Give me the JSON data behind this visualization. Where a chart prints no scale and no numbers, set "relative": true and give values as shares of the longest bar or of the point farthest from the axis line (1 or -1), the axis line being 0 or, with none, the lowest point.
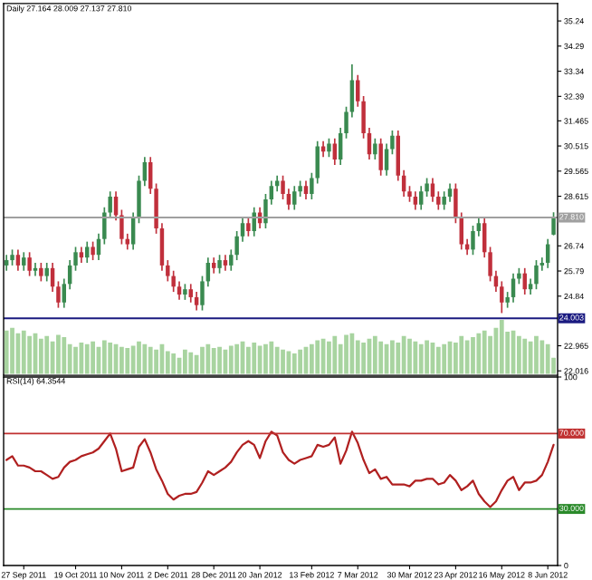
{
  "chart_data": [
    {
      "type": "candlestick",
      "title": "Daily 27.164 28.009 27.137 27.810",
      "tick_labels": "y",
      "categories": [
        null,
        null,
        null,
        null,
        null,
        null,
        null,
        null,
        null,
        null,
        null,
        null,
        null,
        null,
        null,
        null,
        null,
        null,
        null,
        null,
        null,
        null,
        null,
        null,
        null,
        null,
        null,
        null,
        null,
        null,
        null,
        null,
        null,
        null,
        null,
        null,
        null,
        null,
        null,
        null,
        null,
        null,
        null,
        null,
        null,
        null,
        null,
        null,
        null,
        null,
        null,
        null,
        null,
        null,
        null,
        null,
        null,
        null,
        null,
        null,
        null,
        null,
        null,
        null,
        null,
        null,
        null,
        null,
        null,
        null,
        null,
        null,
        null,
        null,
        null,
        null,
        null,
        null,
        null,
        null,
        null,
        null,
        null,
        null,
        null,
        null,
        null,
        null,
        null,
        null,
        null,
        null,
        null,
        null,
        null,
        null
      ],
      "ohlc": [
        [
          26.0,
          26.4,
          25.8,
          26.2
        ],
        [
          26.2,
          26.6,
          26.0,
          26.4
        ],
        [
          26.4,
          26.6,
          25.8,
          26.0
        ],
        [
          26.0,
          26.5,
          25.8,
          26.3
        ],
        [
          26.3,
          26.5,
          25.6,
          25.8
        ],
        [
          25.8,
          26.1,
          25.6,
          25.9
        ],
        [
          25.9,
          26.1,
          25.4,
          25.6
        ],
        [
          25.6,
          26.1,
          25.4,
          25.9
        ],
        [
          25.9,
          26.1,
          25.0,
          25.2
        ],
        [
          25.2,
          25.4,
          24.4,
          24.6
        ],
        [
          24.6,
          25.5,
          24.4,
          25.3
        ],
        [
          25.3,
          26.2,
          25.1,
          26.0
        ],
        [
          26.0,
          26.7,
          25.8,
          26.5
        ],
        [
          26.5,
          26.7,
          26.1,
          26.3
        ],
        [
          26.3,
          26.9,
          26.1,
          26.7
        ],
        [
          26.7,
          26.9,
          26.2,
          26.4
        ],
        [
          26.4,
          27.2,
          26.2,
          27.0
        ],
        [
          27.0,
          28.2,
          26.8,
          28.0
        ],
        [
          28.0,
          28.8,
          27.8,
          28.6
        ],
        [
          28.6,
          28.8,
          27.7,
          27.9
        ],
        [
          27.9,
          28.1,
          26.8,
          27.0
        ],
        [
          27.0,
          27.2,
          26.6,
          26.8
        ],
        [
          26.8,
          28.0,
          26.6,
          27.8
        ],
        [
          27.8,
          29.4,
          27.6,
          29.2
        ],
        [
          29.2,
          30.1,
          29.0,
          29.9
        ],
        [
          29.9,
          30.1,
          28.7,
          28.9
        ],
        [
          28.9,
          29.1,
          27.2,
          27.4
        ],
        [
          27.4,
          27.6,
          25.8,
          26.0
        ],
        [
          26.0,
          26.2,
          25.4,
          25.6
        ],
        [
          25.6,
          25.8,
          25.0,
          25.2
        ],
        [
          25.2,
          25.4,
          24.7,
          24.9
        ],
        [
          24.9,
          25.3,
          24.7,
          25.1
        ],
        [
          25.1,
          25.3,
          24.6,
          24.8
        ],
        [
          24.8,
          25.0,
          24.3,
          24.5
        ],
        [
          24.5,
          25.6,
          24.3,
          25.4
        ],
        [
          25.4,
          26.3,
          25.2,
          26.1
        ],
        [
          26.1,
          26.3,
          25.7,
          25.9
        ],
        [
          25.9,
          26.4,
          25.7,
          26.2
        ],
        [
          26.2,
          26.4,
          25.8,
          26.0
        ],
        [
          26.0,
          26.6,
          25.8,
          26.4
        ],
        [
          26.4,
          27.3,
          26.2,
          27.1
        ],
        [
          27.1,
          27.8,
          26.9,
          27.6
        ],
        [
          27.6,
          27.8,
          27.1,
          27.3
        ],
        [
          27.3,
          28.2,
          27.1,
          28.0
        ],
        [
          28.0,
          28.2,
          27.4,
          27.6
        ],
        [
          27.6,
          28.7,
          27.4,
          28.5
        ],
        [
          28.5,
          29.2,
          28.3,
          29.0
        ],
        [
          29.0,
          29.4,
          28.8,
          29.2
        ],
        [
          29.2,
          29.4,
          28.5,
          28.7
        ],
        [
          28.7,
          28.9,
          28.1,
          28.3
        ],
        [
          28.3,
          29.0,
          28.1,
          28.8
        ],
        [
          28.8,
          29.2,
          28.6,
          29.0
        ],
        [
          29.0,
          29.2,
          28.5,
          28.7
        ],
        [
          28.7,
          29.5,
          28.5,
          29.3
        ],
        [
          29.3,
          30.7,
          29.1,
          30.5
        ],
        [
          30.5,
          30.7,
          30.1,
          30.3
        ],
        [
          30.3,
          30.8,
          30.1,
          30.6
        ],
        [
          30.6,
          30.8,
          29.8,
          30.0
        ],
        [
          30.0,
          31.2,
          29.8,
          31.0
        ],
        [
          31.0,
          32.0,
          30.8,
          31.8
        ],
        [
          31.8,
          33.6,
          31.6,
          33.0
        ],
        [
          33.0,
          33.2,
          32.0,
          32.2
        ],
        [
          32.2,
          32.4,
          30.8,
          31.0
        ],
        [
          31.0,
          31.2,
          30.0,
          30.2
        ],
        [
          30.2,
          30.8,
          30.0,
          30.6
        ],
        [
          30.6,
          30.8,
          29.4,
          29.6
        ],
        [
          29.6,
          30.6,
          29.4,
          30.4
        ],
        [
          30.4,
          31.1,
          30.2,
          30.9
        ],
        [
          30.9,
          31.1,
          29.2,
          29.4
        ],
        [
          29.4,
          29.6,
          28.6,
          28.8
        ],
        [
          28.8,
          29.0,
          28.4,
          28.6
        ],
        [
          28.6,
          28.8,
          28.1,
          28.3
        ],
        [
          28.3,
          29.0,
          28.1,
          28.8
        ],
        [
          28.8,
          29.3,
          28.6,
          29.1
        ],
        [
          29.1,
          29.3,
          28.4,
          28.6
        ],
        [
          28.6,
          28.8,
          28.1,
          28.3
        ],
        [
          28.3,
          28.8,
          28.1,
          28.6
        ],
        [
          28.6,
          29.1,
          28.4,
          28.9
        ],
        [
          28.9,
          29.1,
          27.6,
          27.8
        ],
        [
          27.8,
          28.0,
          26.6,
          26.8
        ],
        [
          26.8,
          27.0,
          26.4,
          26.6
        ],
        [
          26.6,
          27.5,
          26.4,
          27.3
        ],
        [
          27.3,
          27.8,
          27.1,
          27.6
        ],
        [
          27.6,
          27.8,
          26.3,
          26.5
        ],
        [
          26.5,
          26.7,
          25.4,
          25.6
        ],
        [
          25.6,
          25.8,
          25.0,
          25.2
        ],
        [
          25.2,
          25.4,
          24.2,
          24.6
        ],
        [
          24.6,
          25.0,
          24.4,
          24.8
        ],
        [
          24.8,
          25.7,
          24.6,
          25.5
        ],
        [
          25.5,
          25.9,
          25.3,
          25.7
        ],
        [
          25.7,
          25.9,
          24.9,
          25.1
        ],
        [
          25.1,
          25.5,
          24.9,
          25.3
        ],
        [
          25.3,
          26.2,
          25.1,
          26.0
        ],
        [
          26.0,
          26.3,
          25.8,
          26.1
        ],
        [
          26.1,
          27.0,
          25.9,
          26.8
        ],
        [
          27.164,
          28.009,
          27.137,
          27.81
        ]
      ],
      "colors": [
        "#3a8a50",
        "#3a8a50",
        "#c0303c",
        "#3a8a50",
        "#c0303c",
        "#3a8a50",
        "#c0303c",
        "#3a8a50",
        "#c0303c",
        "#c0303c",
        "#3a8a50",
        "#3a8a50",
        "#3a8a50",
        "#c0303c",
        "#3a8a50",
        "#c0303c",
        "#3a8a50",
        "#3a8a50",
        "#3a8a50",
        "#c0303c",
        "#c0303c",
        "#c0303c",
        "#3a8a50",
        "#3a8a50",
        "#3a8a50",
        "#c0303c",
        "#c0303c",
        "#c0303c",
        "#c0303c",
        "#c0303c",
        "#c0303c",
        "#3a8a50",
        "#c0303c",
        "#c0303c",
        "#3a8a50",
        "#3a8a50",
        "#c0303c",
        "#3a8a50",
        "#c0303c",
        "#3a8a50",
        "#3a8a50",
        "#3a8a50",
        "#c0303c",
        "#3a8a50",
        "#c0303c",
        "#3a8a50",
        "#3a8a50",
        "#3a8a50",
        "#c0303c",
        "#c0303c",
        "#3a8a50",
        "#3a8a50",
        "#c0303c",
        "#3a8a50",
        "#3a8a50",
        "#c0303c",
        "#3a8a50",
        "#c0303c",
        "#3a8a50",
        "#3a8a50",
        "#3a8a50",
        "#c0303c",
        "#c0303c",
        "#c0303c",
        "#3a8a50",
        "#c0303c",
        "#3a8a50",
        "#3a8a50",
        "#c0303c",
        "#c0303c",
        "#c0303c",
        "#c0303c",
        "#3a8a50",
        "#3a8a50",
        "#c0303c",
        "#c0303c",
        "#3a8a50",
        "#3a8a50",
        "#c0303c",
        "#c0303c",
        "#c0303c",
        "#3a8a50",
        "#3a8a50",
        "#c0303c",
        "#c0303c",
        "#c0303c",
        "#c0303c",
        "#3a8a50",
        "#3a8a50",
        "#3a8a50",
        "#c0303c",
        "#3a8a50",
        "#3a8a50",
        "#3a8a50",
        "#3a8a50",
        "#3a8a50"
      ],
      "ylim": [
        21.85,
        35.9
      ],
      "yticks": [
        35.24,
        34.29,
        33.34,
        32.39,
        31.465,
        30.515,
        29.565,
        28.615,
        26.74,
        25.79,
        24.84,
        22.965,
        22.016
      ],
      "ref_lines": [
        {
          "axis": "y",
          "value": 27.81,
          "label": "27.810",
          "color": "#a0a0a0"
        },
        {
          "axis": "y",
          "value": 24.003,
          "label": "24.003",
          "color": "#1a1a80"
        }
      ]
    },
    {
      "type": "bar",
      "relative": true,
      "tick_labels": false,
      "color": "#a8d4a0",
      "categories": [
        null,
        null,
        null,
        null,
        null,
        null,
        null,
        null,
        null,
        null,
        null,
        null,
        null,
        null,
        null,
        null,
        null,
        null,
        null,
        null,
        null,
        null,
        null,
        null,
        null,
        null,
        null,
        null,
        null,
        null,
        null,
        null,
        null,
        null,
        null,
        null,
        null,
        null,
        null,
        null,
        null,
        null,
        null,
        null,
        null,
        null,
        null,
        null,
        null,
        null,
        null,
        null,
        null,
        null,
        null,
        null,
        null,
        null,
        null,
        null,
        null,
        null,
        null,
        null,
        null,
        null,
        null,
        null,
        null,
        null,
        null,
        null,
        null,
        null,
        null,
        null,
        null,
        null,
        null,
        null,
        null,
        null,
        null,
        null,
        null,
        null,
        null,
        null,
        null,
        null,
        null,
        null,
        null,
        null,
        null,
        null
      ],
      "values": [
        0.8,
        0.85,
        0.75,
        0.8,
        0.7,
        0.75,
        0.65,
        0.7,
        0.6,
        0.72,
        0.68,
        0.55,
        0.5,
        0.58,
        0.55,
        0.6,
        0.5,
        0.62,
        0.58,
        0.55,
        0.5,
        0.48,
        0.52,
        0.6,
        0.55,
        0.5,
        0.45,
        0.55,
        0.42,
        0.38,
        0.3,
        0.45,
        0.4,
        0.35,
        0.5,
        0.55,
        0.48,
        0.5,
        0.45,
        0.52,
        0.55,
        0.6,
        0.5,
        0.58,
        0.52,
        0.55,
        0.6,
        0.5,
        0.45,
        0.42,
        0.38,
        0.45,
        0.5,
        0.55,
        0.62,
        0.65,
        0.6,
        0.7,
        0.55,
        0.72,
        0.75,
        0.62,
        0.58,
        0.65,
        0.7,
        0.6,
        0.55,
        0.62,
        0.58,
        0.7,
        0.65,
        0.6,
        0.55,
        0.62,
        0.58,
        0.5,
        0.55,
        0.6,
        0.58,
        0.7,
        0.62,
        0.68,
        0.75,
        0.8,
        0.7,
        0.85,
        1.0,
        0.78,
        0.8,
        0.7,
        0.65,
        0.6,
        0.7,
        0.62,
        0.55,
        0.3
      ]
    },
    {
      "type": "line",
      "title": "RSI(14) 64.3544",
      "categories": [
        null,
        null,
        null,
        "27 Sep 2011",
        null,
        null,
        null,
        null,
        null,
        null,
        null,
        null,
        "19 Oct 2011",
        null,
        null,
        null,
        null,
        null,
        null,
        null,
        "10 Nov 2011",
        null,
        null,
        null,
        null,
        null,
        null,
        null,
        "2 Dec 2011",
        null,
        null,
        null,
        null,
        null,
        null,
        null,
        "28 Dec 2011",
        null,
        null,
        null,
        null,
        null,
        null,
        null,
        "20 Jan 2012",
        null,
        null,
        null,
        null,
        null,
        null,
        null,
        null,
        "13 Feb 2012",
        null,
        null,
        null,
        null,
        null,
        null,
        null,
        "7 Mar 2012",
        null,
        null,
        null,
        null,
        null,
        null,
        null,
        null,
        "30 Mar 2012",
        null,
        null,
        null,
        null,
        null,
        null,
        null,
        "23 Apr 2012",
        null,
        null,
        null,
        null,
        null,
        null,
        null,
        "16 May 2012",
        null,
        null,
        null,
        null,
        null,
        null,
        null,
        "8 Jun 2012",
        null
      ],
      "series": [
        {
          "color": "#b02020",
          "values": [
            56,
            58,
            53,
            53,
            52,
            50,
            50,
            48,
            46,
            47,
            52,
            55,
            56,
            58,
            59,
            60,
            62,
            66,
            70,
            62,
            50,
            51,
            52,
            63,
            67,
            60,
            51,
            45,
            38,
            35,
            37,
            38,
            38,
            39,
            44,
            50,
            48,
            50,
            52,
            55,
            60,
            64,
            66,
            64,
            57,
            66,
            71,
            69,
            60,
            56,
            54,
            56,
            57,
            58,
            64,
            63,
            64,
            68,
            54,
            61,
            71,
            65,
            56,
            49,
            51,
            46,
            47,
            43,
            43,
            43,
            42,
            45,
            45,
            46,
            46,
            43,
            44,
            48,
            45,
            40,
            42,
            45,
            38,
            34,
            31,
            34,
            40,
            45,
            47,
            40,
            44,
            44,
            45,
            48,
            55,
            64
          ]
        }
      ],
      "ylim": [
        0,
        100
      ],
      "yticks": [
        0,
        100
      ],
      "ref_lines": [
        {
          "axis": "y",
          "value": 70,
          "label": "70.000",
          "color": "#c03030"
        },
        {
          "axis": "y",
          "value": 30,
          "label": "30.000",
          "color": "#2a8a2a"
        }
      ]
    }
  ]
}
